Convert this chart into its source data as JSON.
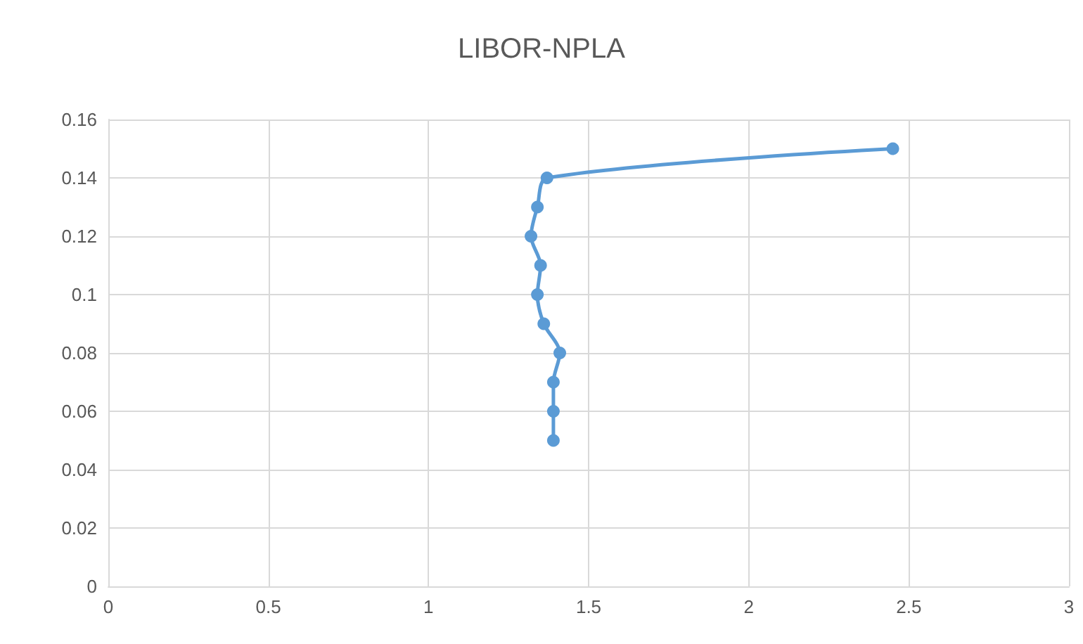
{
  "chart_data": {
    "type": "line",
    "title": "LIBOR-NPLA",
    "series": [
      {
        "color": "#5b9bd5",
        "x": [
          1.39,
          1.39,
          1.39,
          1.41,
          1.36,
          1.34,
          1.35,
          1.32,
          1.34,
          1.37,
          2.45
        ],
        "values": [
          0.05,
          0.06,
          0.07,
          0.08,
          0.09,
          0.1,
          0.11,
          0.12,
          0.13,
          0.14,
          0.15
        ]
      }
    ],
    "xlim": [
      0,
      3
    ],
    "xticks": [
      0,
      0.5,
      1,
      1.5,
      2,
      2.5,
      3
    ],
    "ylim": [
      0,
      0.16
    ],
    "yticks": [
      0,
      0.02,
      0.04,
      0.06,
      0.08,
      0.1,
      0.12,
      0.14,
      0.16
    ],
    "grid": true,
    "marker": "circle",
    "line_style": "solid"
  }
}
